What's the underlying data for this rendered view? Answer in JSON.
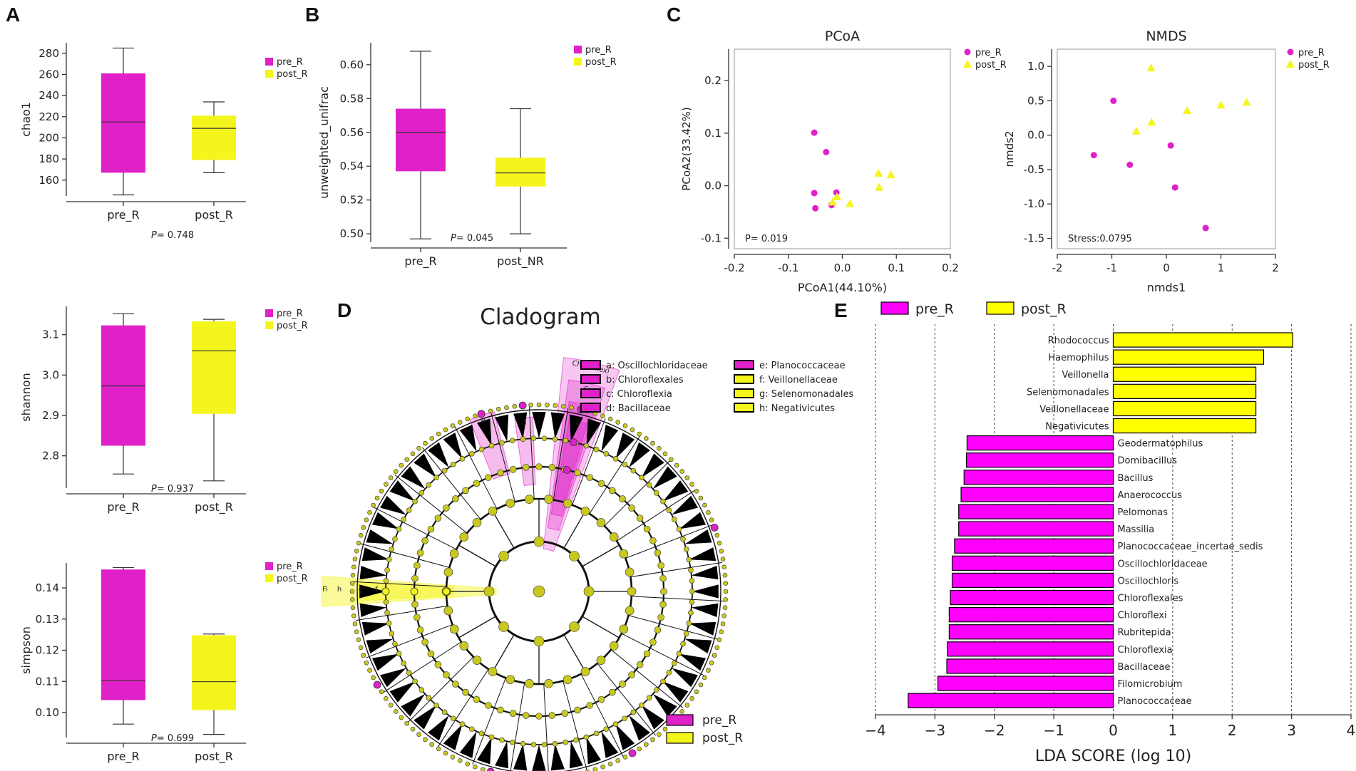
{
  "colors": {
    "pre": "#e020c8",
    "post": "#f5f51e",
    "lda_pre": "#ff00ff",
    "lda_post": "#ffff00",
    "node": "#c8c81e"
  },
  "panels": {
    "A": "A",
    "B": "B",
    "C": "C",
    "D": "D",
    "E": "E"
  },
  "chart_data": [
    {
      "id": "A1",
      "type": "box",
      "ylabel": "chao1",
      "ylim": [
        145,
        290
      ],
      "yticks": [
        160,
        180,
        200,
        220,
        240,
        260,
        280
      ],
      "ytick_labels": [
        "160",
        "180",
        "200",
        "220",
        "240",
        "260",
        "280"
      ],
      "categories": [
        "pre_R",
        "post_R"
      ],
      "boxes": [
        {
          "name": "pre_R",
          "min": 146,
          "q1": 167,
          "median": 215,
          "q3": 261,
          "max": 285
        },
        {
          "name": "post_R",
          "min": 167,
          "q1": 179,
          "median": 209,
          "q3": 221,
          "max": 234
        }
      ],
      "p_prefix": "P",
      "p_value": "= 0.748",
      "legend": [
        "pre_R",
        "post_R"
      ]
    },
    {
      "id": "A2",
      "type": "box",
      "ylabel": "shannon",
      "ylim": [
        2.72,
        3.17
      ],
      "yticks": [
        2.8,
        2.9,
        3.0,
        3.1
      ],
      "ytick_labels": [
        "2.8",
        "2.9",
        "3.0",
        "3.1"
      ],
      "categories": [
        "pre_R",
        "post_R"
      ],
      "boxes": [
        {
          "name": "pre_R",
          "min": 2.755,
          "q1": 2.825,
          "median": 2.973,
          "q3": 3.123,
          "max": 3.152
        },
        {
          "name": "post_R",
          "min": 2.738,
          "q1": 2.904,
          "median": 3.06,
          "q3": 3.133,
          "max": 3.138
        }
      ],
      "p_prefix": "P",
      "p_value": "= 0.937",
      "legend": [
        "pre_R",
        "post_R"
      ]
    },
    {
      "id": "A3",
      "type": "box",
      "ylabel": "simpson",
      "ylim": [
        0.092,
        0.148
      ],
      "yticks": [
        0.1,
        0.11,
        0.12,
        0.13,
        0.14
      ],
      "ytick_labels": [
        "0.10",
        "0.11",
        "0.12",
        "0.13",
        "0.14"
      ],
      "categories": [
        "pre_R",
        "post_R"
      ],
      "boxes": [
        {
          "name": "pre_R",
          "min": 0.0963,
          "q1": 0.104,
          "median": 0.1103,
          "q3": 0.1459,
          "max": 0.1465
        },
        {
          "name": "post_R",
          "min": 0.093,
          "q1": 0.1008,
          "median": 0.1099,
          "q3": 0.1248,
          "max": 0.1252
        }
      ],
      "p_prefix": "P",
      "p_value": "= 0.699",
      "legend": [
        "pre_R",
        "post_R"
      ]
    },
    {
      "id": "B",
      "type": "box",
      "ylabel": "unweighted_unifrac",
      "ylim": [
        0.495,
        0.613
      ],
      "yticks": [
        0.5,
        0.52,
        0.54,
        0.56,
        0.58,
        0.6
      ],
      "ytick_labels": [
        "0.50",
        "0.52",
        "0.54",
        "0.56",
        "0.58",
        "0.60"
      ],
      "categories": [
        "pre_R",
        "post_NR"
      ],
      "boxes": [
        {
          "name": "pre_R",
          "min": 0.497,
          "q1": 0.537,
          "median": 0.56,
          "q3": 0.574,
          "max": 0.608
        },
        {
          "name": "post_NR",
          "min": 0.5,
          "q1": 0.528,
          "median": 0.536,
          "q3": 0.545,
          "max": 0.574
        }
      ],
      "p_prefix": "P",
      "p_value": "= 0.045",
      "legend": [
        "pre_R",
        "post_R"
      ]
    },
    {
      "id": "C1",
      "type": "scatter",
      "title": "PCoA",
      "xlabel": "PCoA1(44.10%)",
      "ylabel": "PCoA2(33.42%)",
      "xlim": [
        -0.2,
        0.2
      ],
      "ylim": [
        -0.12,
        0.26
      ],
      "xticks": [
        -0.2,
        -0.1,
        0.0,
        0.1,
        0.2
      ],
      "xtick_labels": [
        "-0.2",
        "-0.1",
        "0.0",
        "0.1",
        "0.2"
      ],
      "yticks": [
        -0.1,
        0.0,
        0.1,
        0.2
      ],
      "ytick_labels": [
        "-0.1",
        "0.0",
        "0.1",
        "0.2"
      ],
      "series": [
        {
          "name": "pre_R",
          "marker": "circle",
          "points": [
            [
              -0.052,
              0.101
            ],
            [
              -0.03,
              0.064
            ],
            [
              -0.052,
              -0.014
            ],
            [
              -0.05,
              -0.043
            ],
            [
              -0.02,
              -0.037
            ],
            [
              -0.011,
              -0.013
            ]
          ]
        },
        {
          "name": "post_R",
          "marker": "triangle",
          "points": [
            [
              -0.018,
              -0.031
            ],
            [
              -0.01,
              -0.021
            ],
            [
              0.014,
              -0.034
            ],
            [
              0.067,
              0.024
            ],
            [
              0.09,
              0.021
            ],
            [
              0.068,
              -0.003
            ]
          ]
        }
      ],
      "annotation": "P= 0.019",
      "legend": [
        "pre_R",
        "post_R"
      ]
    },
    {
      "id": "C2",
      "type": "scatter",
      "title": "NMDS",
      "xlabel": "nmds1",
      "ylabel": "nmds2",
      "xlim": [
        -2,
        2
      ],
      "ylim": [
        -1.65,
        1.25
      ],
      "xticks": [
        -2,
        -1,
        0,
        1,
        2
      ],
      "xtick_labels": [
        "-2",
        "-1",
        "0",
        "1",
        "2"
      ],
      "yticks": [
        -1.5,
        -1.0,
        -0.5,
        0.0,
        0.5,
        1.0
      ],
      "ytick_labels": [
        "-1.5",
        "-1.0",
        "-0.5",
        "0.0",
        "0.5",
        "1.0"
      ],
      "series": [
        {
          "name": "pre_R",
          "marker": "circle",
          "points": [
            [
              -1.33,
              -0.29
            ],
            [
              -0.97,
              0.5
            ],
            [
              -0.67,
              -0.43
            ],
            [
              0.08,
              -0.15
            ],
            [
              0.16,
              -0.76
            ],
            [
              0.72,
              -1.35
            ]
          ]
        },
        {
          "name": "post_R",
          "marker": "triangle",
          "points": [
            [
              -0.28,
              0.98
            ],
            [
              -0.55,
              0.06
            ],
            [
              -0.27,
              0.19
            ],
            [
              0.38,
              0.36
            ],
            [
              1.0,
              0.44
            ],
            [
              1.47,
              0.48
            ]
          ]
        }
      ],
      "annotation": "Stress:0.0795",
      "legend": [
        "pre_R",
        "post_R"
      ]
    },
    {
      "id": "D",
      "type": "cladogram",
      "title": "Cladogram",
      "legend_items": [
        {
          "label": "a: Oscillochloridaceae",
          "group": "pre"
        },
        {
          "label": "b: Chloroflexales",
          "group": "pre"
        },
        {
          "label": "c: Chloroflexia",
          "group": "pre"
        },
        {
          "label": "d: Bacillaceae",
          "group": "pre"
        },
        {
          "label": "e: Planococcaceae",
          "group": "pre"
        },
        {
          "label": "f: Veillonellaceae",
          "group": "post"
        },
        {
          "label": "g: Selenomonadales",
          "group": "post"
        },
        {
          "label": "h: Negativicutes",
          "group": "post"
        }
      ],
      "wedge_labels": [
        {
          "label": "Chloroflexi",
          "group": "pre"
        },
        {
          "label": "c",
          "group": "pre"
        },
        {
          "label": "b",
          "group": "pre"
        },
        {
          "label": "a",
          "group": "pre"
        },
        {
          "label": "d",
          "group": "pre"
        },
        {
          "label": "e",
          "group": "pre"
        },
        {
          "label": "Fi",
          "group": "post"
        },
        {
          "label": "h",
          "group": "post"
        },
        {
          "label": "g",
          "group": "post"
        },
        {
          "label": "f",
          "group": "post"
        }
      ],
      "group_legend": [
        "pre_R",
        "post_R"
      ]
    },
    {
      "id": "E",
      "type": "bar",
      "orientation": "horizontal",
      "xlabel": "LDA SCORE (log 10)",
      "xlim": [
        -4,
        4
      ],
      "xticks": [
        -4,
        -3,
        -2,
        -1,
        0,
        1,
        2,
        3,
        4
      ],
      "xtick_labels": [
        "−4",
        "−3",
        "−2",
        "−1",
        "0",
        "1",
        "2",
        "3",
        "4"
      ],
      "legend": [
        "pre_R",
        "post_R"
      ],
      "bars": [
        {
          "name": "Rhodococcus",
          "value": 3.02,
          "group": "post"
        },
        {
          "name": "Haemophilus",
          "value": 2.53,
          "group": "post"
        },
        {
          "name": "Veillonella",
          "value": 2.4,
          "group": "post"
        },
        {
          "name": "Selenomonadales",
          "value": 2.4,
          "group": "post"
        },
        {
          "name": "Veillonellaceae",
          "value": 2.4,
          "group": "post"
        },
        {
          "name": "Negativicutes",
          "value": 2.4,
          "group": "post"
        },
        {
          "name": "Geodermatophilus",
          "value": -2.46,
          "group": "pre"
        },
        {
          "name": "Domibacillus",
          "value": -2.47,
          "group": "pre"
        },
        {
          "name": "Bacillus",
          "value": -2.51,
          "group": "pre"
        },
        {
          "name": "Anaerococcus",
          "value": -2.56,
          "group": "pre"
        },
        {
          "name": "Pelomonas",
          "value": -2.6,
          "group": "pre"
        },
        {
          "name": "Massilia",
          "value": -2.6,
          "group": "pre"
        },
        {
          "name": "Planococcaceae_incertae_sedis",
          "value": -2.67,
          "group": "pre"
        },
        {
          "name": "Oscillochloridaceae",
          "value": -2.71,
          "group": "pre"
        },
        {
          "name": "Oscillochloris",
          "value": -2.71,
          "group": "pre"
        },
        {
          "name": "Chloroflexales",
          "value": -2.74,
          "group": "pre"
        },
        {
          "name": "Chloroflexi",
          "value": -2.76,
          "group": "pre"
        },
        {
          "name": "Rubritepida",
          "value": -2.76,
          "group": "pre"
        },
        {
          "name": "Chloroflexia",
          "value": -2.79,
          "group": "pre"
        },
        {
          "name": "Bacillaceae",
          "value": -2.8,
          "group": "pre"
        },
        {
          "name": "Filomicrobium",
          "value": -2.95,
          "group": "pre"
        },
        {
          "name": "Planococcaceae",
          "value": -3.45,
          "group": "pre"
        }
      ]
    }
  ]
}
